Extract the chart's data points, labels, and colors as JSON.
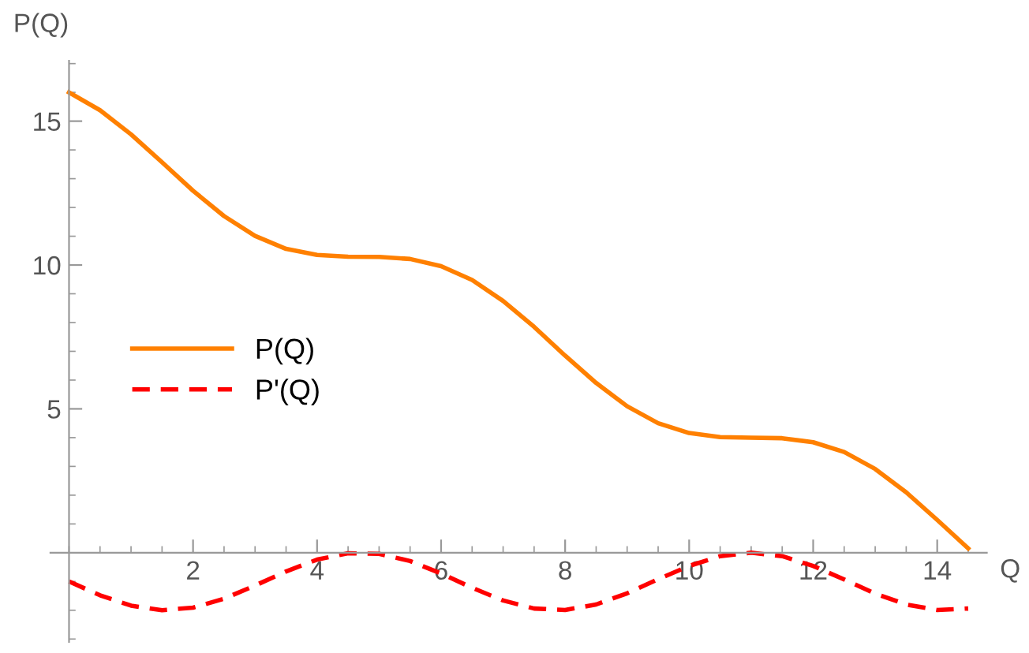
{
  "chart_data": {
    "type": "line",
    "xlabel": "Q",
    "ylabel": "P(Q)",
    "x": [
      0,
      0.5,
      1,
      1.5,
      2,
      2.5,
      3,
      3.5,
      4,
      4.5,
      5,
      5.5,
      6,
      6.5,
      7,
      7.5,
      8,
      8.5,
      9,
      9.5,
      10,
      10.5,
      11,
      11.5,
      12,
      12.5,
      13,
      13.5,
      14,
      14.5
    ],
    "series": [
      {
        "name": "P(Q)",
        "color": "#ff8000",
        "line_style": "solid",
        "values": [
          16.0,
          15.38,
          14.54,
          13.57,
          12.58,
          11.7,
          11.01,
          10.56,
          10.35,
          10.29,
          10.28,
          10.21,
          9.96,
          9.48,
          8.75,
          7.85,
          6.85,
          5.9,
          5.09,
          4.5,
          4.16,
          4.02,
          4.0,
          3.98,
          3.84,
          3.5,
          2.91,
          2.1,
          1.14,
          0.15
        ]
      },
      {
        "name": "P'(Q)",
        "color": "#ff0000",
        "line_style": "dashed",
        "values": [
          -1.0,
          -1.48,
          -1.84,
          -2.0,
          -1.91,
          -1.6,
          -1.14,
          -0.65,
          -0.24,
          -0.02,
          -0.04,
          -0.29,
          -0.72,
          -1.22,
          -1.66,
          -1.94,
          -1.99,
          -1.8,
          -1.41,
          -0.92,
          -0.46,
          -0.12,
          0.0,
          -0.12,
          -0.46,
          -0.93,
          -1.42,
          -1.8,
          -1.99,
          -1.94
        ]
      }
    ],
    "xlim": [
      -0.3,
      14.8
    ],
    "ylim": [
      -3.1,
      17.1
    ],
    "xticks": [
      2,
      4,
      6,
      8,
      10,
      12,
      14
    ],
    "yticks": [
      5,
      10,
      15
    ],
    "grid": false,
    "legend": "left",
    "marker": "none"
  }
}
